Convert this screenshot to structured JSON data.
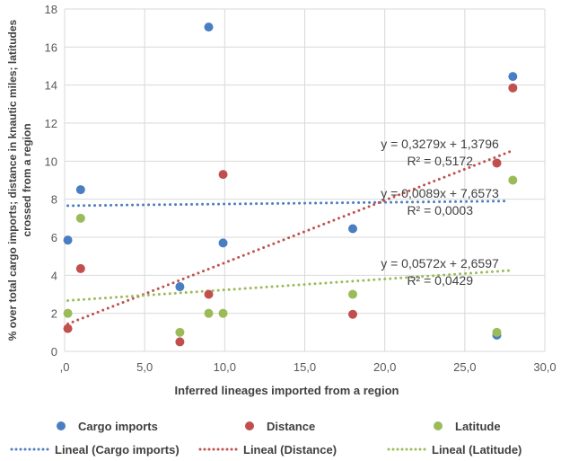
{
  "chart_data": {
    "type": "scatter",
    "xlabel": "Inferred  lineages imported from a region",
    "ylabel": "% over total cargo imports; distance in knautic miles; latitudes crossed from a region",
    "ylabel_lines": [
      "% over total cargo imports; distance in knautic miles; latitudes",
      "crossed from a region"
    ],
    "xlim": [
      0,
      30
    ],
    "ylim": [
      0,
      18
    ],
    "x_ticks": [
      0,
      5,
      10,
      15,
      20,
      25,
      30
    ],
    "x_tick_labels": [
      ",0",
      "5,0",
      "10,0",
      "15,0",
      "20,0",
      "25,0",
      "30,0"
    ],
    "y_ticks": [
      0,
      2,
      4,
      6,
      8,
      10,
      12,
      14,
      16,
      18
    ],
    "y_tick_labels": [
      "0",
      "2",
      "4",
      "6",
      "8",
      "10",
      "12",
      "14",
      "16",
      "18"
    ],
    "grid": true,
    "legend_placement": "bottom",
    "series": [
      {
        "name": "Cargo imports",
        "color": "#4A7EC2",
        "x": [
          0.2,
          1,
          7.2,
          9,
          9.9,
          18,
          27,
          28
        ],
        "y": [
          5.85,
          8.5,
          3.4,
          17.05,
          5.7,
          6.45,
          0.85,
          14.45
        ],
        "trend": {
          "name": "Lineal (Cargo imports)",
          "slope": 0.0089,
          "intercept": 7.6573,
          "equation": "y = 0,0089x + 7,6573",
          "r2": "R² = 0,0003",
          "x_range": [
            0.2,
            27.5
          ]
        }
      },
      {
        "name": "Distance",
        "color": "#C0504D",
        "x": [
          0.2,
          1,
          7.2,
          9,
          9.9,
          18,
          27,
          28
        ],
        "y": [
          1.2,
          4.35,
          0.5,
          3.0,
          9.3,
          1.95,
          9.9,
          13.85
        ],
        "trend": {
          "name": "Lineal (Distance)",
          "slope": 0.3279,
          "intercept": 1.3796,
          "equation": "y = 0,3279x + 1,3796",
          "r2": "R² = 0,5172",
          "x_range": [
            0.2,
            28
          ]
        }
      },
      {
        "name": "Latitude",
        "color": "#9BBB59",
        "x": [
          0.2,
          1,
          7.2,
          9,
          9.9,
          18,
          27,
          28
        ],
        "y": [
          2,
          7,
          1,
          2,
          2,
          3,
          1,
          9
        ],
        "trend": {
          "name": "Lineal (Latitude)",
          "slope": 0.0572,
          "intercept": 2.6597,
          "equation": "y = 0,0572x + 2,6597",
          "r2": "R² = 0,0429",
          "x_range": [
            0.2,
            28
          ]
        }
      }
    ]
  }
}
